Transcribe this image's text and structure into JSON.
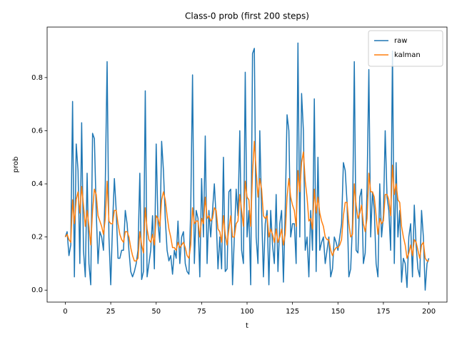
{
  "chart_data": {
    "type": "line",
    "title": "Class-0 prob (first 200 steps)",
    "xlabel": "t",
    "ylabel": "prob",
    "x": [
      0,
      1,
      2,
      3,
      4,
      5,
      6,
      7,
      8,
      9,
      10,
      11,
      12,
      13,
      14,
      15,
      16,
      17,
      18,
      19,
      20,
      21,
      22,
      23,
      24,
      25,
      26,
      27,
      28,
      29,
      30,
      31,
      32,
      33,
      34,
      35,
      36,
      37,
      38,
      39,
      40,
      41,
      42,
      43,
      44,
      45,
      46,
      47,
      48,
      49,
      50,
      51,
      52,
      53,
      54,
      55,
      56,
      57,
      58,
      59,
      60,
      61,
      62,
      63,
      64,
      65,
      66,
      67,
      68,
      69,
      70,
      71,
      72,
      73,
      74,
      75,
      76,
      77,
      78,
      79,
      80,
      81,
      82,
      83,
      84,
      85,
      86,
      87,
      88,
      89,
      90,
      91,
      92,
      93,
      94,
      95,
      96,
      97,
      98,
      99,
      100,
      101,
      102,
      103,
      104,
      105,
      106,
      107,
      108,
      109,
      110,
      111,
      112,
      113,
      114,
      115,
      116,
      117,
      118,
      119,
      120,
      121,
      122,
      123,
      124,
      125,
      126,
      127,
      128,
      129,
      130,
      131,
      132,
      133,
      134,
      135,
      136,
      137,
      138,
      139,
      140,
      141,
      142,
      143,
      144,
      145,
      146,
      147,
      148,
      149,
      150,
      151,
      152,
      153,
      154,
      155,
      156,
      157,
      158,
      159,
      160,
      161,
      162,
      163,
      164,
      165,
      166,
      167,
      168,
      169,
      170,
      171,
      172,
      173,
      174,
      175,
      176,
      177,
      178,
      179,
      180,
      181,
      182,
      183,
      184,
      185,
      186,
      187,
      188,
      189,
      190,
      191,
      192,
      193,
      194,
      195,
      196,
      197,
      198,
      199,
      200
    ],
    "series": [
      {
        "name": "raw",
        "color": "#1f77b4",
        "values": [
          0.2,
          0.22,
          0.13,
          0.17,
          0.71,
          0.05,
          0.55,
          0.45,
          0.1,
          0.63,
          0.15,
          0.05,
          0.44,
          0.1,
          0.02,
          0.59,
          0.57,
          0.3,
          0.1,
          0.22,
          0.2,
          0.15,
          0.4,
          0.86,
          0.2,
          0.02,
          0.25,
          0.42,
          0.3,
          0.12,
          0.12,
          0.15,
          0.15,
          0.3,
          0.25,
          0.15,
          0.07,
          0.05,
          0.07,
          0.1,
          0.15,
          0.44,
          0.04,
          0.07,
          0.75,
          0.05,
          0.1,
          0.15,
          0.28,
          0.08,
          0.55,
          0.25,
          0.18,
          0.56,
          0.45,
          0.27,
          0.15,
          0.11,
          0.13,
          0.06,
          0.15,
          0.12,
          0.26,
          0.1,
          0.2,
          0.22,
          0.1,
          0.07,
          0.06,
          0.3,
          0.81,
          0.1,
          0.3,
          0.27,
          0.05,
          0.42,
          0.2,
          0.58,
          0.1,
          0.3,
          0.2,
          0.3,
          0.4,
          0.27,
          0.08,
          0.2,
          0.08,
          0.5,
          0.07,
          0.08,
          0.37,
          0.38,
          0.02,
          0.2,
          0.38,
          0.28,
          0.6,
          0.15,
          0.1,
          0.82,
          0.2,
          0.3,
          0.02,
          0.89,
          0.91,
          0.2,
          0.1,
          0.6,
          0.3,
          0.05,
          0.25,
          0.3,
          0.02,
          0.3,
          0.17,
          0.1,
          0.36,
          0.07,
          0.25,
          0.3,
          0.03,
          0.3,
          0.66,
          0.6,
          0.2,
          0.25,
          0.25,
          0.1,
          0.93,
          0.2,
          0.74,
          0.6,
          0.15,
          0.2,
          0.05,
          0.3,
          0.15,
          0.72,
          0.07,
          0.5,
          0.15,
          0.18,
          0.2,
          0.1,
          0.15,
          0.2,
          0.05,
          0.08,
          0.2,
          0.18,
          0.15,
          0.2,
          0.25,
          0.48,
          0.45,
          0.33,
          0.05,
          0.08,
          0.25,
          0.86,
          0.15,
          0.14,
          0.35,
          0.38,
          0.1,
          0.14,
          0.38,
          0.83,
          0.2,
          0.37,
          0.3,
          0.1,
          0.05,
          0.4,
          0.2,
          0.28,
          0.6,
          0.35,
          0.3,
          0.15,
          0.9,
          0.1,
          0.48,
          0.2,
          0.3,
          0.03,
          0.12,
          0.1,
          0.01,
          0.2,
          0.25,
          0.05,
          0.32,
          0.17,
          0.08,
          0.05,
          0.3,
          0.2,
          0.0,
          0.1,
          0.12
        ]
      },
      {
        "name": "kalman",
        "color": "#ff7f0e",
        "values": [
          0.2,
          0.21,
          0.19,
          0.18,
          0.34,
          0.25,
          0.34,
          0.37,
          0.29,
          0.39,
          0.32,
          0.24,
          0.3,
          0.24,
          0.17,
          0.3,
          0.38,
          0.36,
          0.28,
          0.26,
          0.24,
          0.21,
          0.27,
          0.41,
          0.26,
          0.25,
          0.25,
          0.3,
          0.3,
          0.25,
          0.21,
          0.19,
          0.18,
          0.22,
          0.22,
          0.2,
          0.16,
          0.13,
          0.11,
          0.11,
          0.12,
          0.22,
          0.17,
          0.14,
          0.31,
          0.23,
          0.19,
          0.18,
          0.21,
          0.17,
          0.28,
          0.27,
          0.24,
          0.34,
          0.37,
          0.34,
          0.28,
          0.23,
          0.2,
          0.16,
          0.16,
          0.15,
          0.18,
          0.16,
          0.17,
          0.18,
          0.16,
          0.13,
          0.12,
          0.17,
          0.31,
          0.25,
          0.26,
          0.26,
          0.2,
          0.27,
          0.25,
          0.35,
          0.27,
          0.28,
          0.26,
          0.27,
          0.31,
          0.3,
          0.23,
          0.22,
          0.18,
          0.28,
          0.21,
          0.17,
          0.23,
          0.28,
          0.2,
          0.2,
          0.25,
          0.26,
          0.36,
          0.3,
          0.24,
          0.41,
          0.35,
          0.34,
          0.24,
          0.44,
          0.56,
          0.45,
          0.35,
          0.42,
          0.38,
          0.28,
          0.27,
          0.28,
          0.2,
          0.23,
          0.21,
          0.18,
          0.23,
          0.18,
          0.2,
          0.23,
          0.17,
          0.21,
          0.35,
          0.42,
          0.35,
          0.32,
          0.3,
          0.24,
          0.45,
          0.37,
          0.48,
          0.52,
          0.41,
          0.35,
          0.26,
          0.27,
          0.23,
          0.38,
          0.29,
          0.35,
          0.29,
          0.26,
          0.24,
          0.2,
          0.19,
          0.19,
          0.15,
          0.13,
          0.15,
          0.16,
          0.16,
          0.17,
          0.19,
          0.28,
          0.33,
          0.33,
          0.25,
          0.2,
          0.21,
          0.4,
          0.32,
          0.27,
          0.29,
          0.32,
          0.25,
          0.22,
          0.27,
          0.44,
          0.37,
          0.37,
          0.35,
          0.28,
          0.21,
          0.27,
          0.25,
          0.26,
          0.36,
          0.36,
          0.34,
          0.28,
          0.47,
          0.36,
          0.4,
          0.34,
          0.33,
          0.24,
          0.2,
          0.17,
          0.12,
          0.14,
          0.17,
          0.13,
          0.19,
          0.18,
          0.15,
          0.12,
          0.17,
          0.18,
          0.12,
          0.11,
          0.11
        ]
      }
    ],
    "xlim": [
      -10,
      210
    ],
    "ylim": [
      -0.045,
      0.99
    ],
    "xticks": [
      0,
      25,
      50,
      75,
      100,
      125,
      150,
      175,
      200
    ],
    "yticks": [
      {
        "value": 0,
        "label": "0.0"
      },
      0.2,
      0.4,
      0.6,
      0.8
    ],
    "legend": "upper right"
  }
}
